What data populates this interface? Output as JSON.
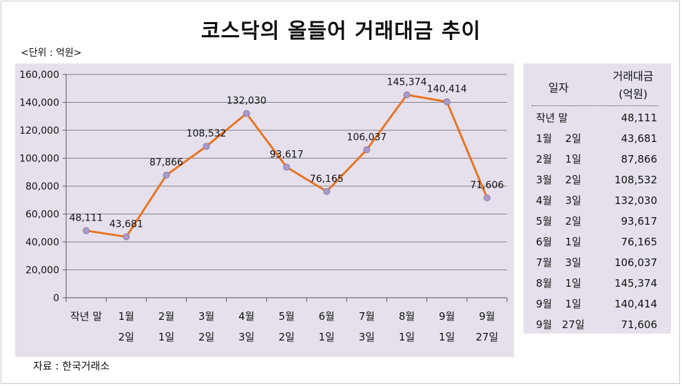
{
  "title": "코스닥의 올들어 거래대금 추이",
  "unit": "<단위 : 억원>",
  "source": "자료 : 한국거래소",
  "colors": {
    "line": "#e8731f",
    "marker": "#a99bc6",
    "panel": "#e6e0ec",
    "grid": "#7f7f7f"
  },
  "chart_data": {
    "type": "line",
    "categories": [
      [
        "작년 말"
      ],
      [
        "1월",
        "2일"
      ],
      [
        "2월",
        "1일"
      ],
      [
        "3월",
        "2일"
      ],
      [
        "4월",
        "3일"
      ],
      [
        "5월",
        "2일"
      ],
      [
        "6월",
        "1일"
      ],
      [
        "7월",
        "3일"
      ],
      [
        "8월",
        "1일"
      ],
      [
        "9월",
        "1일"
      ],
      [
        "9월",
        "27일"
      ]
    ],
    "values": [
      48111,
      43681,
      87866,
      108532,
      132030,
      93617,
      76165,
      106037,
      145374,
      140414,
      71606
    ],
    "labels": [
      "48,111",
      "43,681",
      "87,866",
      "108,532",
      "132,030",
      "93,617",
      "76,165",
      "106,037",
      "145,374",
      "140,414",
      "71,606"
    ],
    "ylim": [
      0,
      160000
    ],
    "yticks": [
      "0",
      "20,000",
      "40,000",
      "60,000",
      "80,000",
      "100,000",
      "120,000",
      "140,000",
      "160,000"
    ],
    "grid": true
  },
  "table": {
    "header_date": "일자",
    "header_amount_1": "거래대금",
    "header_amount_2": "(억원)",
    "rows": [
      {
        "date": "작년 말",
        "value": "48,111"
      },
      {
        "date": "1월    2일",
        "value": "43,681"
      },
      {
        "date": "2월    1일",
        "value": "87,866"
      },
      {
        "date": "3월    2일",
        "value": "108,532"
      },
      {
        "date": "4월    3일",
        "value": "132,030"
      },
      {
        "date": "5월    2일",
        "value": "93,617"
      },
      {
        "date": "6월    1일",
        "value": "76,165"
      },
      {
        "date": "7월    3일",
        "value": "106,037"
      },
      {
        "date": "8월    1일",
        "value": "145,374"
      },
      {
        "date": "9월    1일",
        "value": "140,414"
      },
      {
        "date": "9월   27일",
        "value": "71,606"
      }
    ]
  }
}
